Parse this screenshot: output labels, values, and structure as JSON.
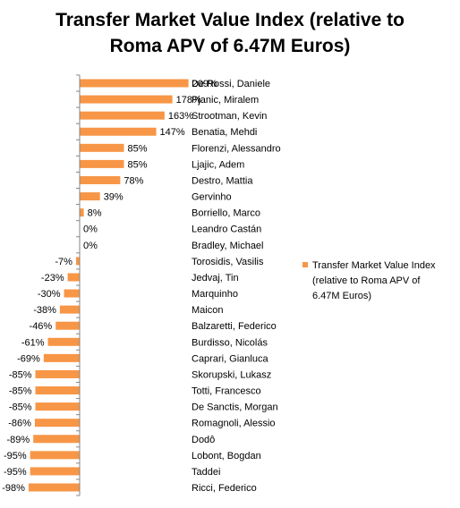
{
  "chart_data": {
    "type": "bar",
    "orientation": "horizontal",
    "title_lines": [
      "Transfer Market Value Index (relative to",
      "Roma APV of 6.47M Euros)"
    ],
    "value_format": "percent",
    "bar_color": "#F79646",
    "legend_placement": "right",
    "legend_lines": [
      "Transfer Market Value Index",
      "(relative to Roma APV of",
      "6.47M Euros)"
    ],
    "grid": false,
    "xlim": [
      -100,
      210
    ],
    "categories": [
      "De Rossi, Daniele",
      "Pjanic, Miralem",
      "Strootman, Kevin",
      "Benatia, Mehdi",
      "Florenzi, Alessandro",
      "Ljajic, Adem",
      "Destro, Mattia",
      "Gervinho",
      "Borriello, Marco",
      "Leandro Castán",
      "Bradley, Michael",
      "Torosidis, Vasilis",
      "Jedvaj, Tin",
      "Marquinho",
      "Maicon",
      "Balzaretti, Federico",
      "Burdisso, Nicolás",
      "Caprari, Gianluca",
      "Skorupski, Lukasz",
      "Totti, Francesco",
      "De Sanctis, Morgan",
      "Romagnoli, Alessio",
      "Dodô",
      "Lobont, Bogdan",
      "Taddei",
      "Ricci, Federico"
    ],
    "values": [
      209,
      178,
      163,
      147,
      85,
      85,
      78,
      39,
      8,
      0,
      0,
      -7,
      -23,
      -30,
      -38,
      -46,
      -61,
      -69,
      -85,
      -85,
      -85,
      -86,
      -89,
      -95,
      -95,
      -98
    ],
    "value_labels": [
      "209%",
      "178%",
      "163%",
      "147%",
      "85%",
      "85%",
      "78%",
      "39%",
      "8%",
      "0%",
      "0%",
      "-7%",
      "-23%",
      "-30%",
      "-38%",
      "-46%",
      "-61%",
      "-69%",
      "-85%",
      "-85%",
      "-85%",
      "-86%",
      "-89%",
      "-95%",
      "-95%",
      "-98%"
    ]
  }
}
